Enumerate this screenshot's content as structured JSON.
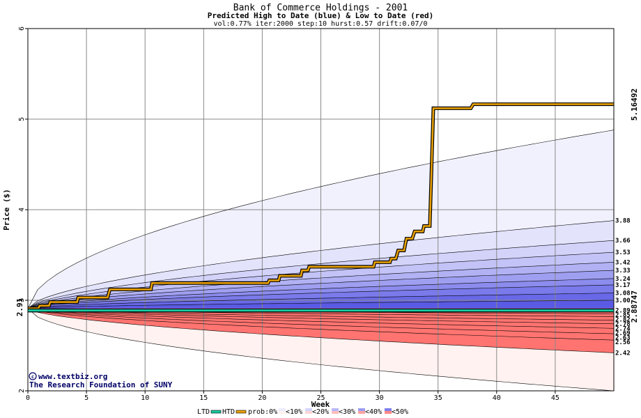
{
  "chart_data": {
    "type": "area",
    "title": "Bank of Commerce Holdings - 2001",
    "subtitle": "Predicted High to Date (blue) &  Low to Date (red)",
    "params": "vol:0.77% iter:2000 step:10 hurst:0.57 drift:0.07/0",
    "xlabel": "Week",
    "ylabel": "Price ($)",
    "xlim": [
      0,
      50
    ],
    "ylim": [
      2,
      6
    ],
    "x_ticks": [
      0,
      5,
      10,
      15,
      20,
      25,
      30,
      35,
      40,
      45
    ],
    "y_ticks": [
      2,
      3,
      4,
      5,
      6
    ],
    "start_price": 2.91,
    "start_label": "2.91",
    "max_label": "5.16492",
    "max_value": 5.16492,
    "min_label": "2.88747",
    "min_value": 2.88747,
    "high_percentiles": [
      3.88,
      3.66,
      3.53,
      3.42,
      3.33,
      3.24,
      3.17,
      3.08,
      3.0
    ],
    "high_percentile_labels": [
      "3.88",
      "3.66",
      "3.53",
      "3.42",
      "3.33",
      "3.24",
      "3.17",
      "3.08",
      "3.00"
    ],
    "high_outer_end": 4.88,
    "low_percentiles": [
      2.89,
      2.85,
      2.82,
      2.78,
      2.74,
      2.69,
      2.63,
      2.56,
      2.42
    ],
    "low_percentile_labels": [
      "2.89",
      "2.85",
      "2.82",
      "2.78",
      "2.74",
      "2.69",
      "2.63",
      "2.56",
      "2.42"
    ],
    "low_outer_end": 2.0,
    "htd_series": {
      "name": "HTD",
      "points": [
        [
          0,
          2.91
        ],
        [
          0.9,
          2.91
        ],
        [
          1,
          2.94
        ],
        [
          1.8,
          2.94
        ],
        [
          1.9,
          2.98
        ],
        [
          4.2,
          2.98
        ],
        [
          4.3,
          3.03
        ],
        [
          6.8,
          3.03
        ],
        [
          7,
          3.12
        ],
        [
          10.5,
          3.12
        ],
        [
          10.6,
          3.19
        ],
        [
          20.5,
          3.19
        ],
        [
          20.6,
          3.22
        ],
        [
          21.4,
          3.22
        ],
        [
          21.5,
          3.27
        ],
        [
          23.3,
          3.27
        ],
        [
          23.4,
          3.33
        ],
        [
          23.9,
          3.33
        ],
        [
          24,
          3.37
        ],
        [
          29.5,
          3.37
        ],
        [
          29.6,
          3.42
        ],
        [
          30.9,
          3.42
        ],
        [
          31,
          3.46
        ],
        [
          31.4,
          3.46
        ],
        [
          31.6,
          3.55
        ],
        [
          32.1,
          3.55
        ],
        [
          32.3,
          3.68
        ],
        [
          32.8,
          3.68
        ],
        [
          33,
          3.76
        ],
        [
          33.7,
          3.76
        ],
        [
          33.8,
          3.82
        ],
        [
          34.3,
          3.82
        ],
        [
          34.6,
          5.12
        ],
        [
          37.8,
          5.12
        ],
        [
          38,
          5.16492
        ],
        [
          50,
          5.16492
        ]
      ]
    },
    "ltd_series": {
      "name": "LTD",
      "value": 2.88747
    },
    "legend": {
      "ltd": "LTD",
      "htd": "HTD",
      "prob": "prob:0%",
      "items": [
        "<10%",
        "<20%",
        "<30%",
        "<40%",
        "<50%"
      ],
      "blue_colors": [
        "#ececff",
        "#d4d4fb",
        "#b8b8f6",
        "#9c9cf0",
        "#7f7fea"
      ],
      "red_colors": [
        "#fff0ee",
        "#ffd6d4",
        "#ffbdbb",
        "#ffa3a0",
        "#ff8a86"
      ]
    },
    "credit_site": "www.textbiz.org",
    "credit_org": "The Research Foundation of SUNY",
    "colors": {
      "htd": "#e8a000",
      "ltd": "#18c8a0",
      "max_label": "#a07010",
      "min_label": "#108060",
      "credit": "#000066"
    }
  }
}
